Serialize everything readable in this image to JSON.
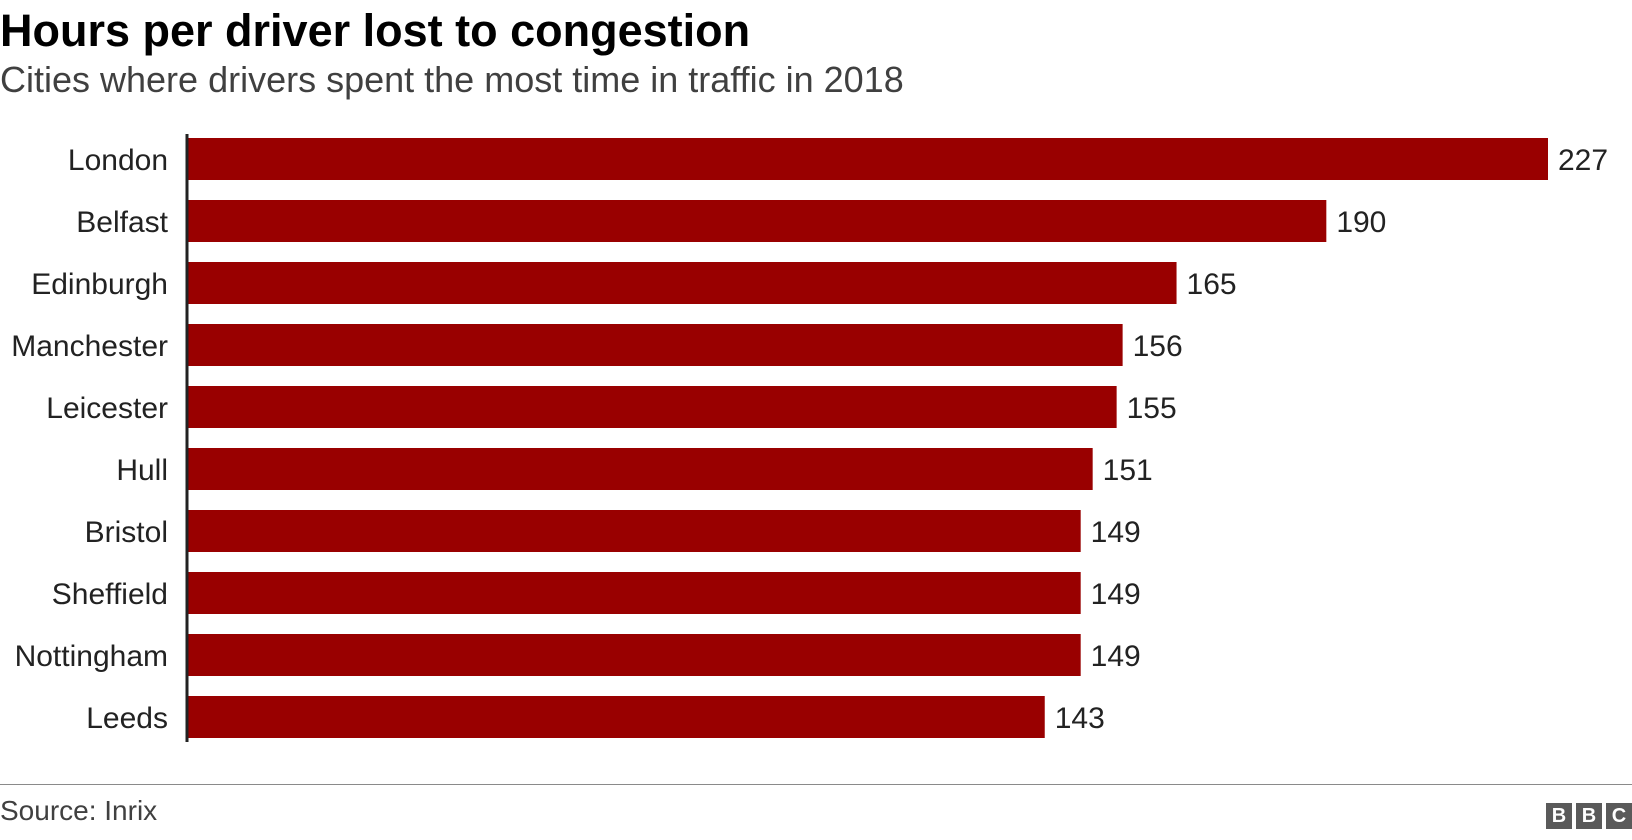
{
  "chart_data": {
    "type": "bar",
    "orientation": "horizontal",
    "title": "Hours per driver lost to congestion",
    "subtitle": "Cities where drivers spent the most time in traffic in 2018",
    "categories": [
      "London",
      "Belfast",
      "Edinburgh",
      "Manchester",
      "Leicester",
      "Hull",
      "Bristol",
      "Sheffield",
      "Nottingham",
      "Leeds"
    ],
    "values": [
      227,
      190,
      165,
      156,
      155,
      151,
      149,
      149,
      149,
      143
    ],
    "xlim": [
      0,
      227
    ],
    "grid": false,
    "bar_color": "#990000",
    "source": "Source: Inrix"
  },
  "logo": {
    "letters": [
      "B",
      "B",
      "C"
    ]
  }
}
